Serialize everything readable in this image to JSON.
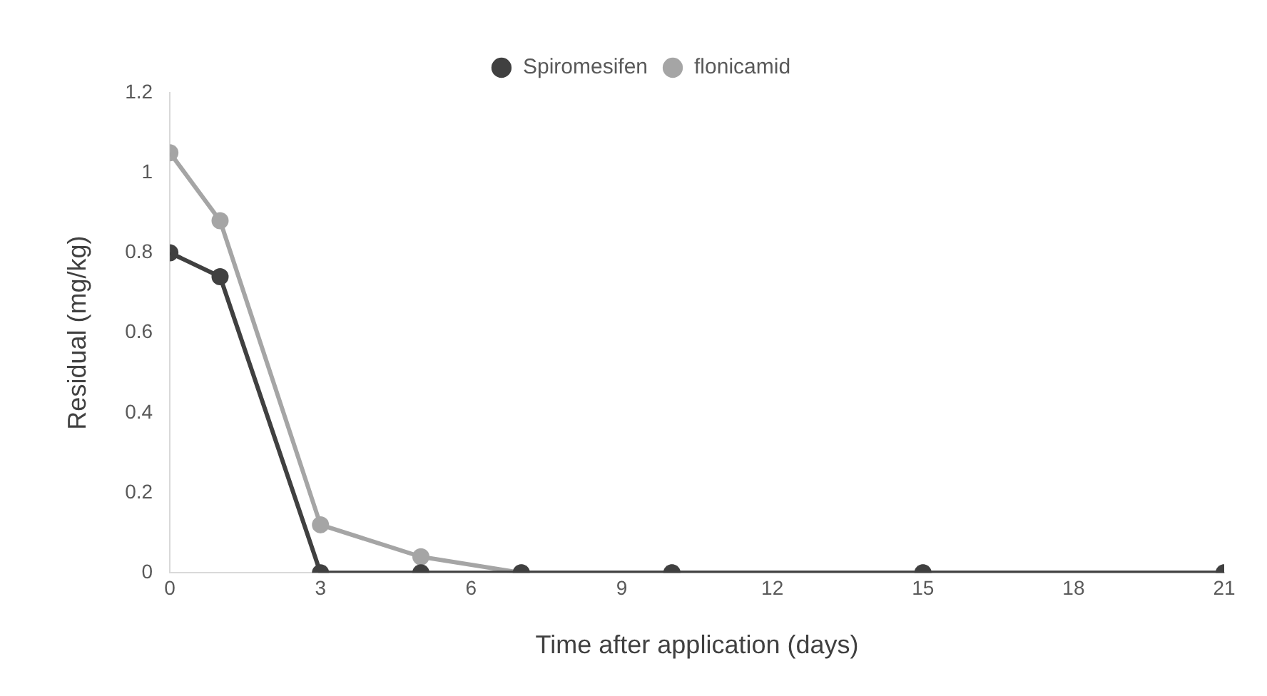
{
  "chart_data": {
    "type": "line",
    "xlabel": "Time after application (days)",
    "ylabel": "Residual (mg/kg)",
    "x": [
      0,
      1,
      3,
      5,
      7,
      10,
      15,
      21
    ],
    "series": [
      {
        "name": "Spiromesifen",
        "color": "#404040",
        "values": [
          0.8,
          0.74,
          0,
          0,
          0,
          0,
          0,
          0
        ]
      },
      {
        "name": "flonicamid",
        "color": "#a5a5a5",
        "values": [
          1.05,
          0.88,
          0.12,
          0.04,
          0,
          0,
          0,
          0
        ]
      }
    ],
    "xlim": [
      0,
      21
    ],
    "xticks": [
      0,
      3,
      6,
      9,
      12,
      15,
      18,
      21
    ],
    "ylim": [
      0,
      1.2
    ],
    "yticks": [
      0,
      0.2,
      0.4,
      0.6,
      0.8,
      1,
      1.2
    ],
    "grid": false,
    "legend": "top",
    "marker": "circle",
    "line_style": "solid"
  }
}
